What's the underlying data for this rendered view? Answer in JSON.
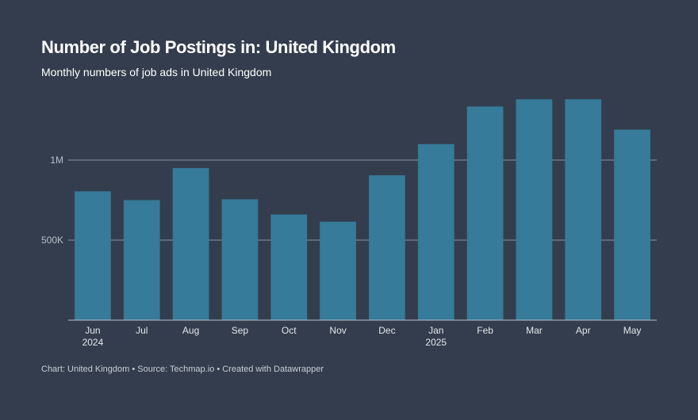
{
  "header": {
    "title": "Number of Job Postings in: United Kingdom",
    "subtitle": "Monthly numbers of job ads in United Kingdom"
  },
  "footer": {
    "text": "Chart: United Kingdom • Source: Techmap.io • Created with Datawrapper"
  },
  "colors": {
    "background": "#333d4d",
    "bar": "#367b99",
    "gridline": "#8a94a2"
  },
  "chart_data": {
    "type": "bar",
    "categories": [
      "Jun",
      "Jul",
      "Aug",
      "Sep",
      "Oct",
      "Nov",
      "Dec",
      "Jan",
      "Feb",
      "Mar",
      "Apr",
      "May"
    ],
    "category_year_labels": [
      "2024",
      "",
      "",
      "",
      "",
      "",
      "",
      "2025",
      "",
      "",
      "",
      ""
    ],
    "values": [
      805000,
      750000,
      950000,
      755000,
      660000,
      615000,
      905000,
      1100000,
      1335000,
      1380000,
      1380000,
      1190000
    ],
    "ylim": [
      0,
      1500000
    ],
    "yticks": [
      {
        "value": 500000,
        "label": "500K"
      },
      {
        "value": 1000000,
        "label": "1M"
      }
    ],
    "grid": true,
    "title": "Number of Job Postings in: United Kingdom",
    "subtitle": "Monthly numbers of job ads in United Kingdom"
  }
}
